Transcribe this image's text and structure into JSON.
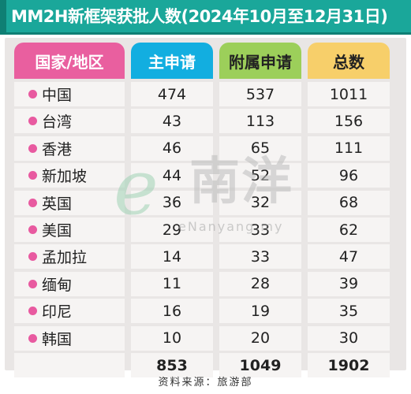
{
  "title": "MM2H新框架获批人数(2024年10月至12月31日)",
  "colors": {
    "title_bg": "#1aa79a",
    "country_header": "#e95f9f",
    "main_header": "#12aee0",
    "dependent_header": "#9ccf5a",
    "total_header": "#f7cf6a",
    "dot": "#e85aa0"
  },
  "headers": {
    "country": "国家/地区",
    "main": "主申请",
    "dependent": "附属申请",
    "total": "总数"
  },
  "chart_data": {
    "type": "table",
    "columns": [
      "国家/地区",
      "主申请",
      "附属申请",
      "总数"
    ],
    "rows": [
      {
        "country": "中国",
        "main": "474",
        "dependent": "537",
        "total": "1011"
      },
      {
        "country": "台湾",
        "main": "43",
        "dependent": "113",
        "total": "156"
      },
      {
        "country": "香港",
        "main": "46",
        "dependent": "65",
        "total": "111"
      },
      {
        "country": "新加坡",
        "main": "44",
        "dependent": "52",
        "total": "96"
      },
      {
        "country": "英国",
        "main": "36",
        "dependent": "32",
        "total": "68"
      },
      {
        "country": "美国",
        "main": "29",
        "dependent": "33",
        "total": "62"
      },
      {
        "country": "孟加拉",
        "main": "14",
        "dependent": "33",
        "total": "47"
      },
      {
        "country": "缅甸",
        "main": "11",
        "dependent": "28",
        "total": "39"
      },
      {
        "country": "印尼",
        "main": "16",
        "dependent": "19",
        "total": "35"
      },
      {
        "country": "韩国",
        "main": "10",
        "dependent": "20",
        "total": "30"
      }
    ],
    "totals": {
      "main": "853",
      "dependent": "1049",
      "total": "1902"
    }
  },
  "watermark": {
    "letter": "e",
    "chinese": "南洋",
    "url": "eNanyang.my"
  },
  "source": "资料来源：旅游部"
}
